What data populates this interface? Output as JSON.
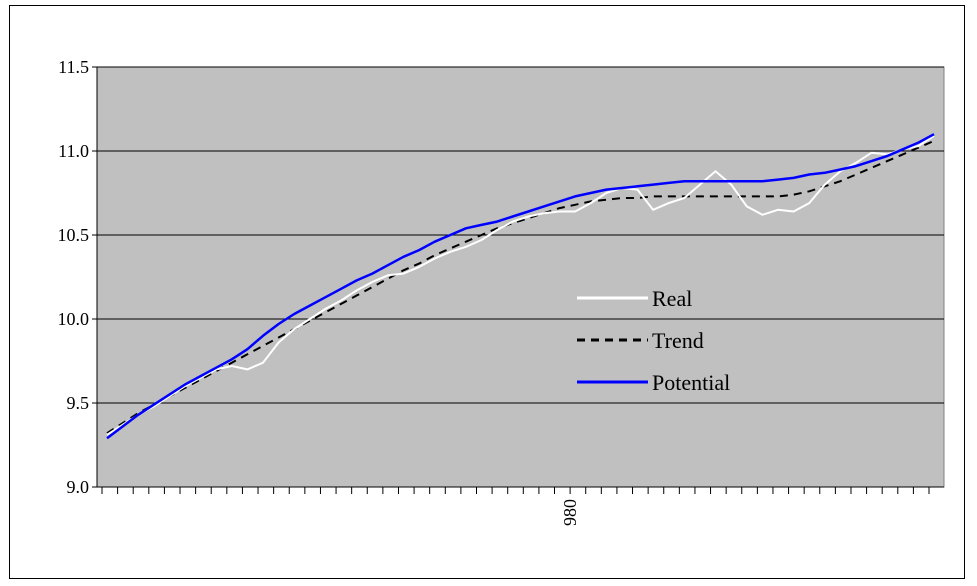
{
  "chart_data": {
    "type": "line",
    "title": "",
    "xlabel": "",
    "ylabel": "",
    "ylim": [
      9.0,
      11.5
    ],
    "yticks": [
      "9.0",
      "9.5",
      "10.0",
      "10.5",
      "11.0",
      "11.5"
    ],
    "x_tick_label": "980",
    "x_tick_label_index": 30,
    "n_points": 54,
    "grid": true,
    "plot_background": "#c0c0c0",
    "legend": {
      "position": "inside-center-right"
    },
    "series": [
      {
        "name": "Real",
        "color": "#ffffff",
        "style": "solid",
        "values": [
          9.31,
          9.37,
          9.43,
          9.48,
          9.54,
          9.6,
          9.65,
          9.7,
          9.72,
          9.7,
          9.74,
          9.86,
          9.94,
          10.0,
          10.06,
          10.11,
          10.17,
          10.22,
          10.26,
          10.27,
          10.31,
          10.36,
          10.4,
          10.43,
          10.47,
          10.53,
          10.58,
          10.61,
          10.63,
          10.64,
          10.64,
          10.69,
          10.75,
          10.78,
          10.77,
          10.65,
          10.69,
          10.72,
          10.8,
          10.88,
          10.8,
          10.67,
          10.62,
          10.65,
          10.64,
          10.69,
          10.8,
          10.88,
          10.93,
          10.99,
          10.98,
          11.01,
          11.03,
          11.09
        ]
      },
      {
        "name": "Trend",
        "color": "#000000",
        "style": "dashed",
        "values": [
          9.32,
          9.38,
          9.44,
          9.49,
          9.54,
          9.59,
          9.64,
          9.69,
          9.74,
          9.79,
          9.84,
          9.89,
          9.94,
          9.99,
          10.04,
          10.09,
          10.14,
          10.19,
          10.24,
          10.29,
          10.33,
          10.38,
          10.42,
          10.46,
          10.5,
          10.54,
          10.57,
          10.6,
          10.63,
          10.66,
          10.68,
          10.7,
          10.71,
          10.72,
          10.72,
          10.73,
          10.73,
          10.73,
          10.73,
          10.73,
          10.73,
          10.73,
          10.73,
          10.73,
          10.74,
          10.76,
          10.79,
          10.82,
          10.86,
          10.9,
          10.94,
          10.98,
          11.02,
          11.06
        ]
      },
      {
        "name": "Potential",
        "color": "#0000ff",
        "style": "solid",
        "values": [
          9.29,
          9.36,
          9.43,
          9.49,
          9.55,
          9.61,
          9.66,
          9.71,
          9.76,
          9.82,
          9.9,
          9.97,
          10.03,
          10.08,
          10.13,
          10.18,
          10.23,
          10.27,
          10.32,
          10.37,
          10.41,
          10.46,
          10.5,
          10.54,
          10.56,
          10.58,
          10.61,
          10.64,
          10.67,
          10.7,
          10.73,
          10.75,
          10.77,
          10.78,
          10.79,
          10.8,
          10.81,
          10.82,
          10.82,
          10.82,
          10.82,
          10.82,
          10.82,
          10.83,
          10.84,
          10.86,
          10.87,
          10.89,
          10.91,
          10.94,
          10.97,
          11.01,
          11.05,
          11.1
        ]
      }
    ]
  }
}
